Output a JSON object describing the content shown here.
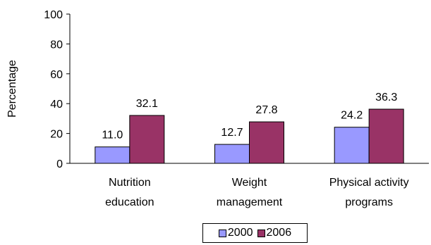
{
  "chart_data": {
    "type": "bar",
    "title": "",
    "ylabel": "Percentage",
    "xlabel": "",
    "ylim": [
      0,
      100
    ],
    "yticks": [
      0,
      20,
      40,
      60,
      80,
      100
    ],
    "categories": [
      [
        "Nutrition",
        "education"
      ],
      [
        "Weight",
        "management"
      ],
      [
        "Physical activity",
        "programs"
      ]
    ],
    "series": [
      {
        "name": "2000",
        "color": "#9999FF",
        "values": [
          11.0,
          12.7,
          24.2
        ],
        "labels": [
          "11.0",
          "12.7",
          "24.2"
        ]
      },
      {
        "name": "2006",
        "color": "#993366",
        "values": [
          32.1,
          27.8,
          36.3
        ],
        "labels": [
          "32.1",
          "27.8",
          "36.3"
        ]
      }
    ],
    "grid": false,
    "legend": "bottom"
  }
}
